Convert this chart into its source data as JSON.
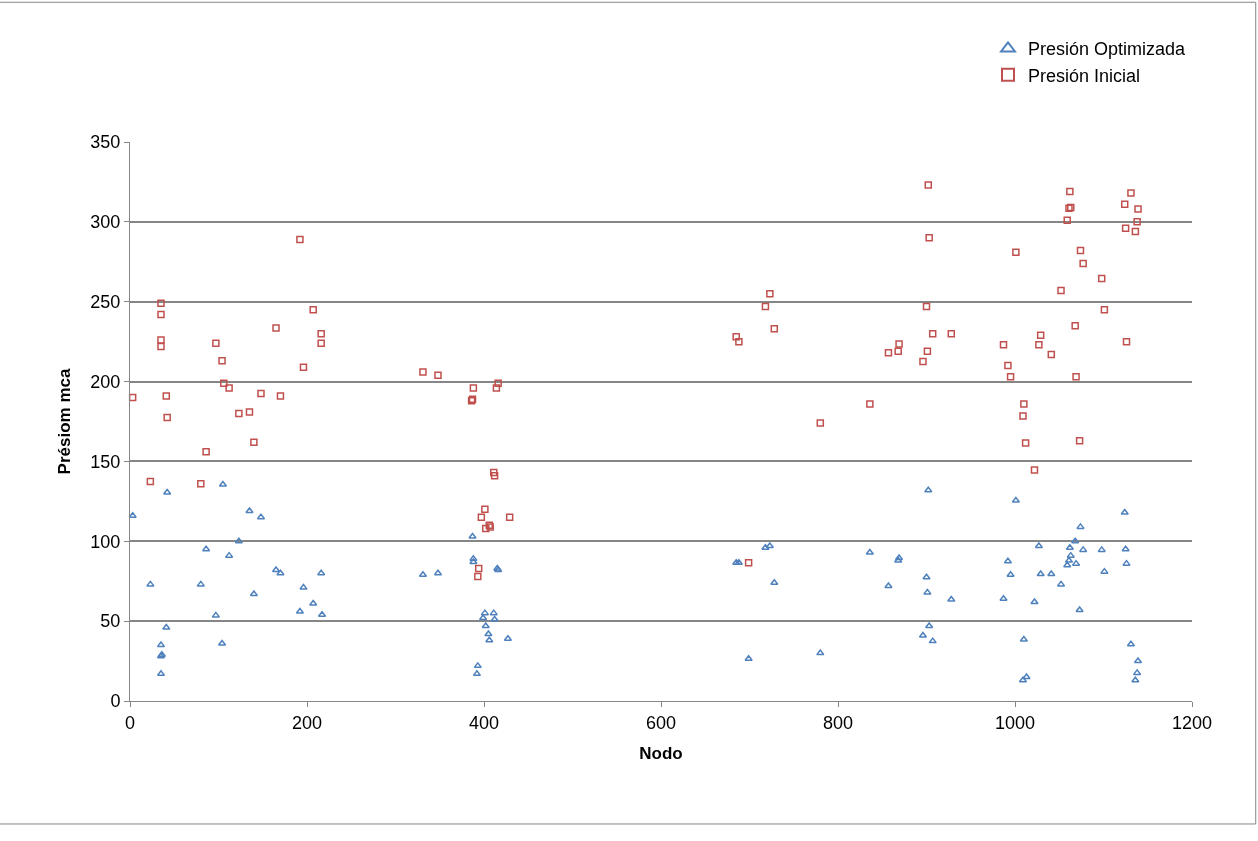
{
  "chart_data": {
    "type": "scatter",
    "xlabel": "Nodo",
    "ylabel": "Présiom mca",
    "xlim": [
      0,
      1200
    ],
    "xticks": [
      0,
      200,
      400,
      600,
      800,
      1000,
      1200
    ],
    "ylim": [
      0,
      350
    ],
    "yticks": [
      0,
      50,
      100,
      150,
      200,
      250,
      300,
      350
    ],
    "grid": "y",
    "legend": "top right",
    "series": [
      {
        "name": "Presión Optimizada",
        "color": "#4f81bd",
        "marker": "triangle",
        "x": [
          3,
          23,
          42,
          35,
          36,
          35,
          35,
          41,
          80,
          86,
          97,
          104,
          105,
          112,
          123,
          135,
          140,
          148,
          165,
          170,
          192,
          196,
          207,
          216,
          217,
          331,
          348,
          387,
          388,
          388,
          392,
          393,
          399,
          401,
          402,
          405,
          406,
          411,
          412,
          415,
          416,
          427,
          685,
          688,
          699,
          718,
          723,
          728,
          780,
          836,
          857,
          868,
          869,
          896,
          900,
          901,
          902,
          903,
          907,
          928,
          987,
          992,
          995,
          1001,
          1009,
          1010,
          1013,
          1022,
          1027,
          1029,
          1041,
          1052,
          1059,
          1061,
          1062,
          1063,
          1068,
          1069,
          1073,
          1074,
          1077,
          1098,
          1101,
          1124,
          1125,
          1126,
          1131,
          1136,
          1138,
          1139
        ],
        "values": [
          116,
          73,
          130.5,
          35,
          29,
          28,
          17,
          46,
          73,
          95,
          53.6,
          36,
          135.6,
          91,
          100,
          119,
          67,
          115,
          82,
          80,
          56,
          71,
          61,
          80,
          54,
          79,
          80,
          103,
          89,
          87,
          17,
          22,
          52,
          55,
          47,
          42,
          38,
          55,
          51,
          83,
          82,
          39,
          86.6,
          86.6,
          26.5,
          96,
          97,
          74,
          30,
          93,
          72,
          88,
          89.5,
          41,
          77.5,
          68,
          132,
          47,
          37.5,
          63.5,
          64,
          87.5,
          79,
          125.5,
          13,
          38.5,
          15,
          62,
          97,
          79.5,
          79.5,
          73,
          85,
          88,
          96,
          91,
          100,
          86,
          57,
          109,
          94.6,
          94.6,
          81,
          118,
          95,
          86,
          35.5,
          13,
          17.6,
          25
        ]
      },
      {
        "name": "Presión Inicial",
        "color": "#c0504d",
        "marker": "square",
        "x": [
          3,
          23,
          35,
          35,
          35,
          35,
          41,
          42,
          80,
          86,
          97,
          104,
          106,
          112,
          123,
          135,
          140,
          148,
          165,
          170,
          192,
          196,
          207,
          216,
          216,
          331,
          348,
          386,
          387,
          388,
          393,
          394,
          397,
          401,
          402,
          406,
          407,
          411,
          412,
          414,
          416,
          429,
          685,
          688,
          699,
          718,
          723,
          728,
          780,
          836,
          857,
          868,
          869,
          896,
          900,
          901,
          902,
          903,
          907,
          928,
          987,
          992,
          995,
          1001,
          1009,
          1010,
          1012,
          1022,
          1027,
          1029,
          1041,
          1052,
          1059,
          1061,
          1062,
          1063,
          1068,
          1069,
          1073,
          1074,
          1077,
          1098,
          1101,
          1124,
          1125,
          1126,
          1131,
          1136,
          1138,
          1139
        ],
        "values": [
          190,
          137.5,
          249,
          242,
          226,
          222,
          191,
          177.5,
          136,
          156,
          224,
          213,
          199,
          196,
          180,
          181,
          162,
          192.6,
          233.6,
          191,
          289,
          209,
          245,
          230,
          224,
          206,
          204,
          188,
          189,
          196,
          78,
          83,
          115,
          120,
          108,
          110,
          109,
          143,
          141,
          196,
          199,
          115,
          228,
          225,
          86.6,
          247,
          255,
          233,
          174,
          186,
          218,
          219,
          223.5,
          212.5,
          247,
          219,
          323,
          290,
          230,
          230,
          223,
          210,
          203,
          281,
          178.5,
          186,
          161.5,
          144.6,
          223,
          229,
          217,
          257,
          301,
          308.5,
          319,
          309,
          235,
          203,
          163,
          282,
          274,
          264.5,
          245,
          311,
          296,
          225,
          318,
          294,
          300,
          308
        ]
      }
    ]
  }
}
